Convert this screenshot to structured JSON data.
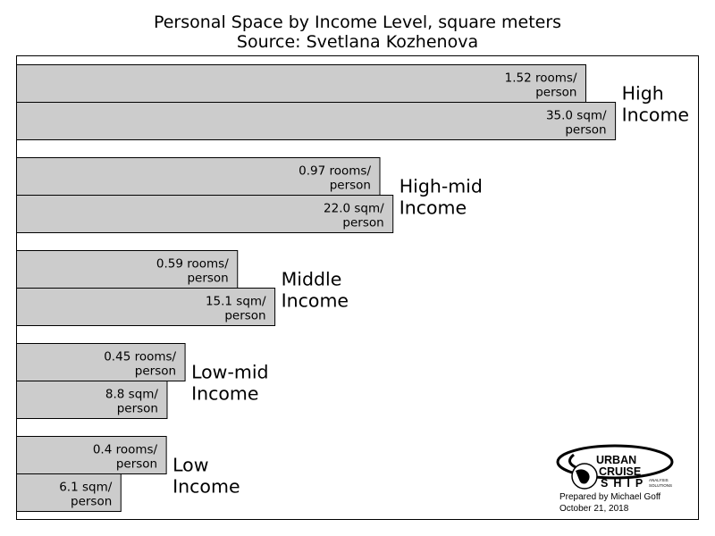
{
  "title_line1": "Personal Space by Income Level, square meters",
  "title_line2": "Source: Svetlana Kozhenova",
  "chart_data": {
    "type": "bar",
    "orientation": "horizontal",
    "title": "Personal Space by Income Level, square meters",
    "subtitle": "Source: Svetlana Kozhenova",
    "xlabel": "",
    "ylabel": "",
    "grid": false,
    "legend": "none",
    "bar_color": "#cccccc",
    "groups": [
      {
        "category_line1": "High",
        "category_line2": "Income",
        "bars": [
          {
            "series": "rooms",
            "value": 1.52,
            "label_line1": "1.52 rooms/",
            "label_line2": "person"
          },
          {
            "series": "sqm",
            "value": 35.0,
            "label_line1": "35.0 sqm/",
            "label_line2": "person"
          }
        ]
      },
      {
        "category_line1": "High-mid",
        "category_line2": "Income",
        "bars": [
          {
            "series": "rooms",
            "value": 0.97,
            "label_line1": "0.97 rooms/",
            "label_line2": "person"
          },
          {
            "series": "sqm",
            "value": 22.0,
            "label_line1": "22.0 sqm/",
            "label_line2": "person"
          }
        ]
      },
      {
        "category_line1": "Middle",
        "category_line2": "Income",
        "bars": [
          {
            "series": "rooms",
            "value": 0.59,
            "label_line1": "0.59 rooms/",
            "label_line2": "person"
          },
          {
            "series": "sqm",
            "value": 15.1,
            "label_line1": "15.1 sqm/",
            "label_line2": "person"
          }
        ]
      },
      {
        "category_line1": "Low-mid",
        "category_line2": "Income",
        "bars": [
          {
            "series": "rooms",
            "value": 0.45,
            "label_line1": "0.45 rooms/",
            "label_line2": "person"
          },
          {
            "series": "sqm",
            "value": 8.8,
            "label_line1": "8.8 sqm/",
            "label_line2": "person"
          }
        ]
      },
      {
        "category_line1": "Low",
        "category_line2": "Income",
        "bars": [
          {
            "series": "rooms",
            "value": 0.4,
            "label_line1": "0.4 rooms/",
            "label_line2": "person"
          },
          {
            "series": "sqm",
            "value": 6.1,
            "label_line1": "6.1 sqm/",
            "label_line2": "person"
          }
        ]
      }
    ]
  },
  "logo": {
    "line1": "URBAN",
    "line2": "CRUISE",
    "line3": "SHIP",
    "tag1": "ANALYSIS",
    "tag2": "SOLUTIONS",
    "credit_line1": "Prepared by Michael Goff",
    "credit_line2": "October 21, 2018"
  }
}
